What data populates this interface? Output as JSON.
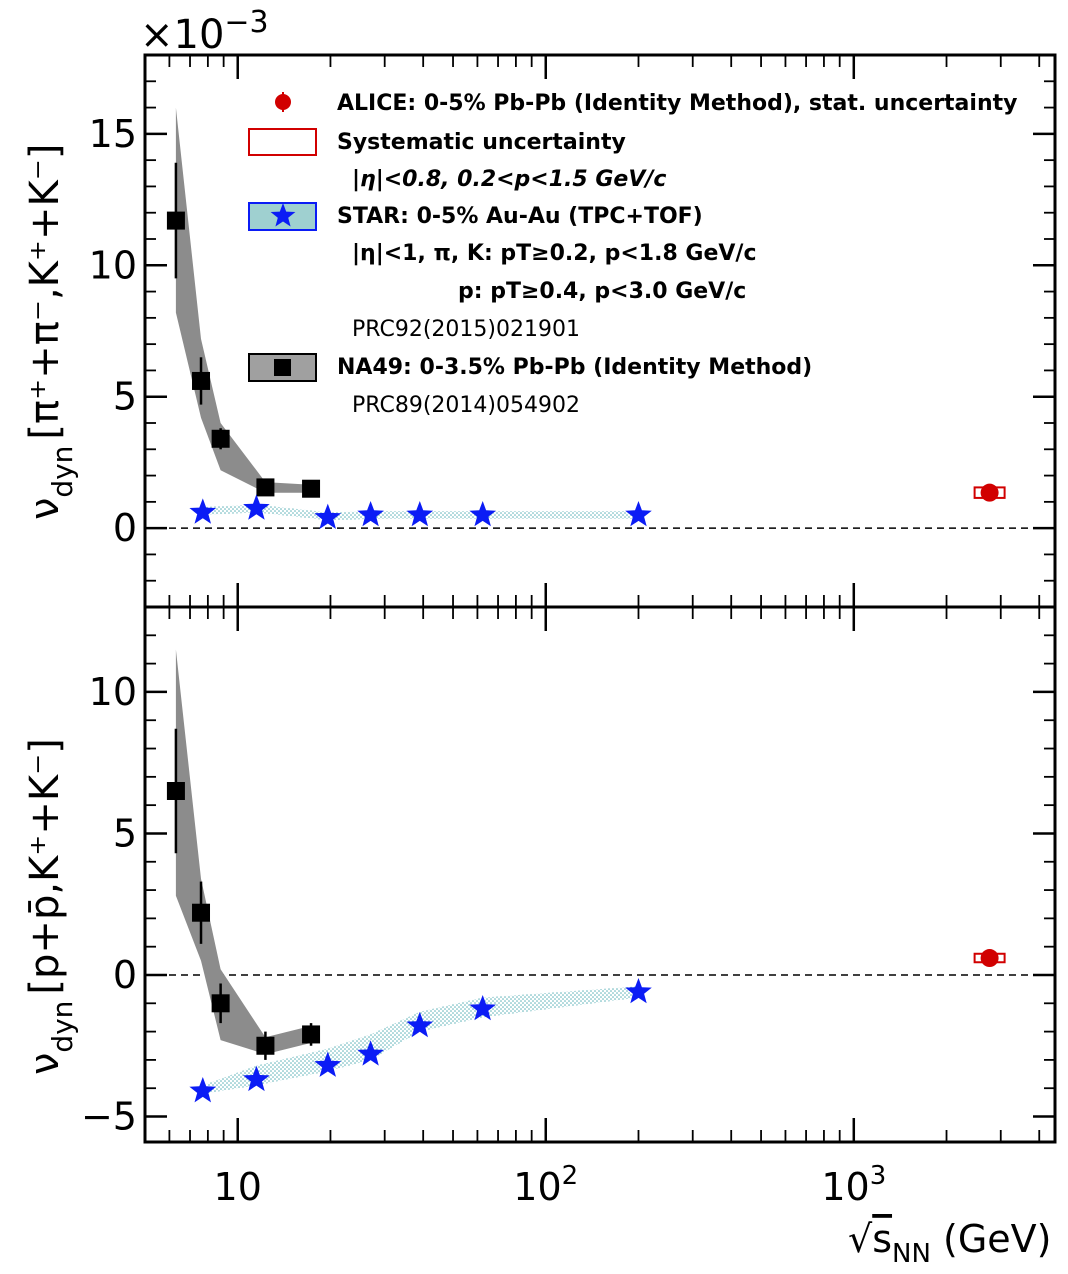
{
  "chart_data": [
    {
      "type": "scatter",
      "panel": "top",
      "exponent_label": "×10",
      "exponent_power": "−3",
      "ylabel": {
        "main": "ν",
        "sub": "dyn",
        "species": "[π⁺+π⁻,K⁺+K⁻]"
      },
      "ylim": [
        -3.0,
        18.0
      ],
      "yticks": [
        0,
        5,
        10,
        15
      ],
      "ytick_labels": [
        "0",
        "5",
        "10",
        "15"
      ],
      "xscale": "log",
      "xlim": [
        5,
        4500
      ],
      "series": [
        {
          "name": "NA49",
          "marker": "square",
          "color": "#000000",
          "x": [
            6.3,
            7.6,
            8.8,
            12.3,
            17.3
          ],
          "y": [
            11.7,
            5.6,
            3.4,
            1.55,
            1.5
          ],
          "stat_err": [
            2.2,
            0.9,
            0.4,
            0.2,
            0.2
          ],
          "sys_band_low": [
            8.2,
            4.2,
            2.2,
            1.35,
            1.35
          ],
          "sys_band_high": [
            16.0,
            7.2,
            4.0,
            1.75,
            1.65
          ]
        },
        {
          "name": "STAR",
          "marker": "star",
          "color": "#0b1cf5",
          "x": [
            7.7,
            11.5,
            19.6,
            27,
            39,
            62.4,
            200
          ],
          "y": [
            0.6,
            0.75,
            0.4,
            0.5,
            0.5,
            0.5,
            0.5
          ],
          "sys_band_low": [
            0.5,
            0.6,
            0.3,
            0.35,
            0.35,
            0.35,
            0.35
          ],
          "sys_band_high": [
            0.8,
            0.9,
            0.6,
            0.65,
            0.65,
            0.65,
            0.65
          ]
        },
        {
          "name": "ALICE",
          "marker": "circle",
          "color": "#d10000",
          "x": [
            2760
          ],
          "y": [
            1.35
          ],
          "sys_low": [
            1.15
          ],
          "sys_high": [
            1.55
          ]
        }
      ],
      "legend": [
        {
          "marker": "circle",
          "text": "ALICE: 0-5% Pb-Pb (Identity Method), stat. uncertainty"
        },
        {
          "marker": "open-box",
          "text": "Systematic uncertainty"
        },
        {
          "marker": "none",
          "text": "|η|<0.8, 0.2<p<1.5 GeV/c"
        },
        {
          "marker": "star-box",
          "text": "STAR:  0-5% Au-Au (TPC+TOF)"
        },
        {
          "marker": "none",
          "text": "|η|<1, π, K:  pT≥0.2,  p<1.8 GeV/c"
        },
        {
          "marker": "none",
          "text": "p:  pT≥0.4,  p<3.0 GeV/c"
        },
        {
          "marker": "none",
          "text": "PRC92(2015)021901"
        },
        {
          "marker": "square-box",
          "text": "NA49:  0-3.5% Pb-Pb (Identity Method)"
        },
        {
          "marker": "none",
          "text": "PRC89(2014)054902"
        }
      ]
    },
    {
      "type": "scatter",
      "panel": "bottom",
      "ylabel": {
        "main": "ν",
        "sub": "dyn",
        "species": "[p+p̄,K⁺+K⁻]"
      },
      "ylim": [
        -5.9,
        13.0
      ],
      "yticks": [
        -5,
        0,
        5,
        10
      ],
      "ytick_labels": [
        "−5",
        "0",
        "5",
        "10"
      ],
      "xscale": "log",
      "xlim": [
        5,
        4500
      ],
      "xticks": [
        10,
        100,
        1000
      ],
      "xtick_labels": [
        {
          "base": "10",
          "exp": ""
        },
        {
          "base": "10",
          "exp": "2"
        },
        {
          "base": "10",
          "exp": "3"
        }
      ],
      "xlabel": {
        "root": "√",
        "main": "s",
        "sub": "NN",
        "unit": " (GeV)"
      },
      "series": [
        {
          "name": "NA49",
          "marker": "square",
          "color": "#000000",
          "x": [
            6.3,
            7.6,
            8.8,
            12.3,
            17.3
          ],
          "y": [
            6.5,
            2.2,
            -1.0,
            -2.5,
            -2.1
          ],
          "stat_err": [
            2.2,
            1.1,
            0.7,
            0.5,
            0.4
          ],
          "sys_band_low": [
            2.8,
            0.5,
            -2.3,
            -2.8,
            -2.4
          ],
          "sys_band_high": [
            11.5,
            3.4,
            0.2,
            -2.2,
            -1.8
          ]
        },
        {
          "name": "STAR",
          "marker": "star",
          "color": "#0b1cf5",
          "x": [
            7.7,
            11.5,
            19.6,
            27,
            39,
            62.4,
            200
          ],
          "y": [
            -4.1,
            -3.7,
            -3.2,
            -2.8,
            -1.8,
            -1.2,
            -0.6
          ],
          "sys_band_low": [
            -4.2,
            -3.9,
            -3.4,
            -3.0,
            -2.0,
            -1.5,
            -0.8
          ],
          "sys_band_high": [
            -3.9,
            -3.2,
            -2.6,
            -2.1,
            -1.3,
            -0.8,
            -0.4
          ]
        },
        {
          "name": "ALICE",
          "marker": "circle",
          "color": "#d10000",
          "x": [
            2760
          ],
          "y": [
            0.6
          ],
          "sys_low": [
            0.45
          ],
          "sys_high": [
            0.75
          ]
        }
      ]
    }
  ]
}
